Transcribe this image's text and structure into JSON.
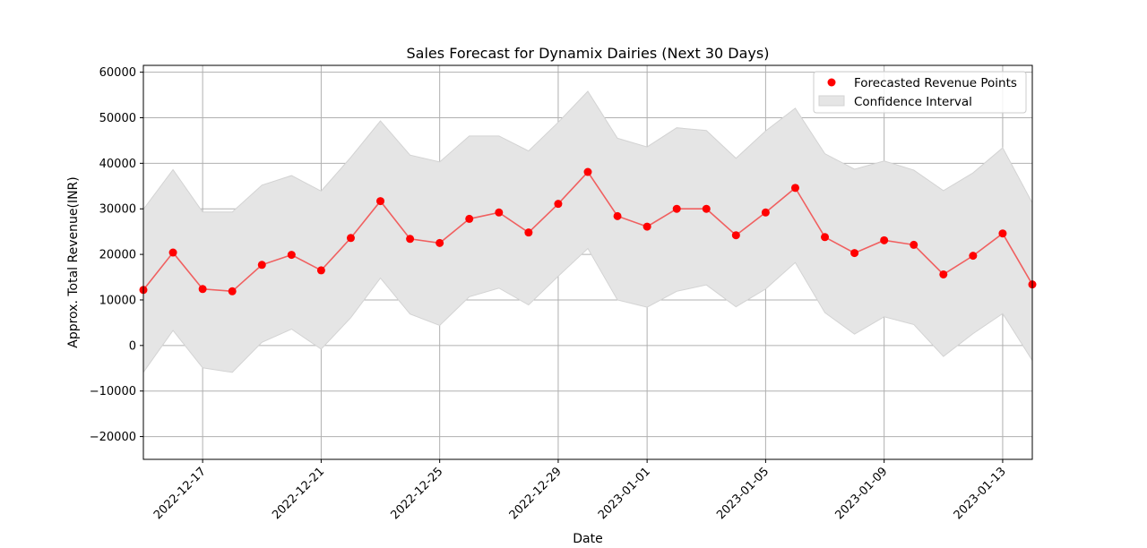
{
  "chart_data": {
    "type": "line",
    "title": "Sales Forecast for Dynamix Dairies (Next 30 Days)",
    "xlabel": "Date",
    "ylabel": "Approx. Total Revenue(INR)",
    "xlim": [
      "2022-12-15",
      "2023-01-14"
    ],
    "ylim": [
      -25000,
      61500
    ],
    "grid": true,
    "legend_position": "top-right",
    "colors": {
      "line": "#f06060",
      "points": "#ff0000",
      "band": "#e5e5e5",
      "band_edge": "#d3d3d3",
      "grid": "#b0b0b0"
    },
    "x_ticks": [
      "2022-12-17",
      "2022-12-21",
      "2022-12-25",
      "2022-12-29",
      "2023-01-01",
      "2023-01-05",
      "2023-01-09",
      "2023-01-13"
    ],
    "y_ticks": [
      -20000,
      -10000,
      0,
      10000,
      20000,
      30000,
      40000,
      50000,
      60000
    ],
    "y_tick_labels": [
      "−20000",
      "−10000",
      "0",
      "10000",
      "20000",
      "30000",
      "40000",
      "50000",
      "60000"
    ],
    "series": [
      {
        "name": "Forecasted Revenue Points",
        "dates": [
          "2022-12-15",
          "2022-12-16",
          "2022-12-17",
          "2022-12-18",
          "2022-12-19",
          "2022-12-20",
          "2022-12-21",
          "2022-12-22",
          "2022-12-23",
          "2022-12-24",
          "2022-12-25",
          "2022-12-26",
          "2022-12-27",
          "2022-12-28",
          "2022-12-29",
          "2022-12-30",
          "2022-12-31",
          "2023-01-01",
          "2023-01-02",
          "2023-01-03",
          "2023-01-04",
          "2023-01-05",
          "2023-01-06",
          "2023-01-07",
          "2023-01-08",
          "2023-01-09",
          "2023-01-10",
          "2023-01-11",
          "2023-01-12",
          "2023-01-13",
          "2023-01-14"
        ],
        "values": [
          12200,
          20400,
          12400,
          11900,
          17700,
          19900,
          16500,
          23600,
          31700,
          23400,
          22500,
          27800,
          29200,
          24800,
          31100,
          38100,
          28400,
          26100,
          30000,
          30000,
          24200,
          29200,
          34600,
          23800,
          20300,
          23100,
          22100,
          15600,
          19700,
          24600,
          13400
        ]
      }
    ],
    "confidence_interval": {
      "name": "Confidence Interval",
      "lower": [
        -5900,
        3300,
        -4900,
        -5900,
        700,
        3600,
        -800,
        6100,
        14800,
        6900,
        4400,
        10700,
        12600,
        8900,
        15200,
        21300,
        10000,
        8400,
        11900,
        13300,
        8500,
        12400,
        18200,
        7200,
        2500,
        6300,
        4600,
        -2400,
        2600,
        7000,
        -3300
      ],
      "upper": [
        29900,
        38600,
        29300,
        29300,
        35200,
        37300,
        33900,
        41300,
        49300,
        41800,
        40300,
        46000,
        46000,
        42700,
        49000,
        55800,
        45500,
        43600,
        47800,
        47200,
        41100,
        47100,
        52100,
        42100,
        38700,
        40500,
        38500,
        34000,
        37900,
        43400,
        31300
      ]
    }
  }
}
